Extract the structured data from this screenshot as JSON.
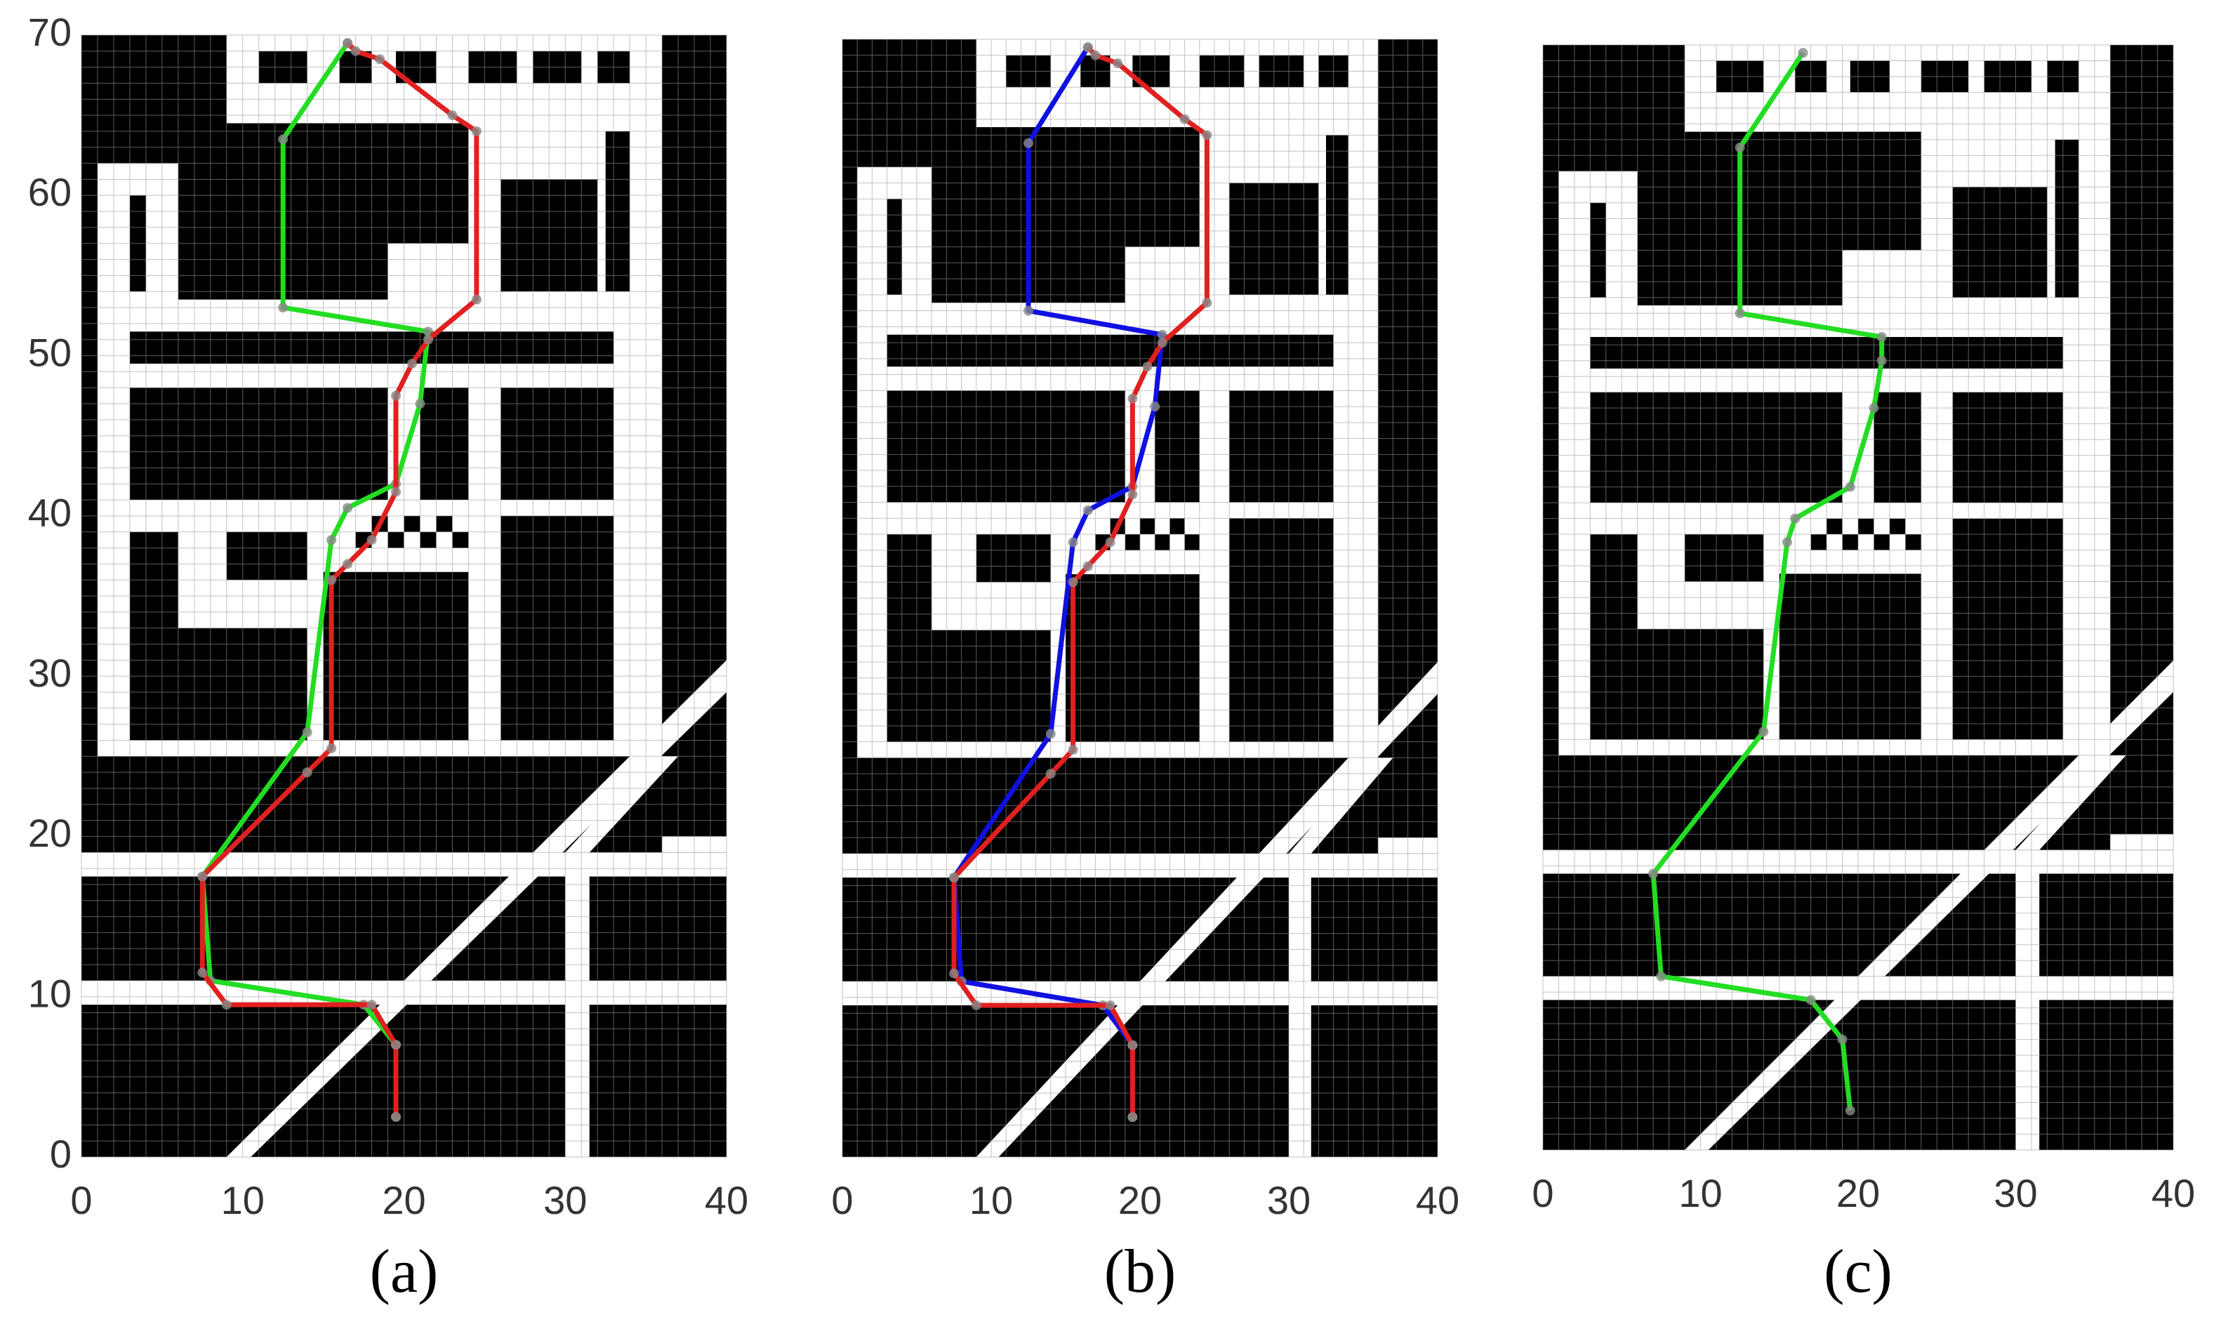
{
  "chart_data": [
    {
      "type": "line",
      "caption": "(a)",
      "xlim": [
        0,
        40
      ],
      "ylim": [
        0,
        70
      ],
      "xticks": [
        0,
        10,
        20,
        30,
        40
      ],
      "yticks": [
        0,
        10,
        20,
        30,
        40,
        50,
        60,
        70
      ],
      "series": [
        {
          "color": "#22dd22",
          "x": [
            16.5,
            12.5,
            12.5,
            21.5,
            21,
            19.5,
            16.5,
            15.5,
            14,
            7.5,
            8,
            17.5,
            19.5,
            19.5
          ],
          "values": [
            69.5,
            63.5,
            53,
            51.5,
            47,
            42,
            40.5,
            38.5,
            26.5,
            17.5,
            11,
            9.5,
            7,
            2.5
          ]
        },
        {
          "color": "#e02020",
          "x": [
            16.5,
            17,
            18.5,
            23,
            24.5,
            24.5,
            21.5,
            20.5,
            19.5,
            19.5,
            18,
            16.5,
            15.5,
            15.5,
            14,
            7.5,
            7.5,
            9,
            18,
            19.5,
            19.5
          ],
          "values": [
            69.5,
            69,
            68.5,
            65,
            64,
            53.5,
            51,
            49.5,
            47.5,
            41.5,
            38.5,
            37,
            36,
            25.5,
            24,
            17.5,
            11.5,
            9.5,
            9.5,
            7,
            2.5
          ]
        }
      ]
    },
    {
      "type": "line",
      "caption": "(b)",
      "xlim": [
        0,
        40
      ],
      "ylim": [
        0,
        70
      ],
      "xticks": [
        0,
        10,
        20,
        30,
        40
      ],
      "series": [
        {
          "color": "#1010e0",
          "x": [
            16.5,
            12.5,
            12.5,
            21.5,
            21,
            19.5,
            16.5,
            15.5,
            14,
            7.5,
            8,
            17.5,
            19.5,
            19.5
          ],
          "values": [
            69.5,
            63.5,
            53,
            51.5,
            47,
            42,
            40.5,
            38.5,
            26.5,
            17.5,
            11,
            9.5,
            7,
            2.5
          ]
        },
        {
          "color": "#e02020",
          "x": [
            16.5,
            17,
            18.5,
            23,
            24.5,
            24.5,
            21.5,
            20.5,
            19.5,
            19.5,
            18,
            16.5,
            15.5,
            15.5,
            14,
            7.5,
            7.5,
            9,
            18,
            19.5,
            19.5
          ],
          "values": [
            69.5,
            69,
            68.5,
            65,
            64,
            53.5,
            51,
            49.5,
            47.5,
            41.5,
            38.5,
            37,
            36,
            25.5,
            24,
            17.5,
            11.5,
            9.5,
            9.5,
            7,
            2.5
          ]
        }
      ]
    },
    {
      "type": "line",
      "caption": "(c)",
      "xlim": [
        0,
        40
      ],
      "ylim": [
        0,
        70
      ],
      "xticks": [
        0,
        10,
        20,
        30,
        40
      ],
      "series": [
        {
          "color": "#22dd22",
          "x": [
            16.5,
            12.5,
            12.5,
            21.5,
            21.5,
            21,
            19.5,
            16,
            15.5,
            14,
            7,
            7.5,
            17,
            19,
            19.5
          ],
          "values": [
            69.5,
            63.5,
            53,
            51.5,
            50,
            47,
            42,
            40,
            38.5,
            26.5,
            17.5,
            11,
            9.5,
            7,
            2.5
          ]
        }
      ]
    }
  ]
}
